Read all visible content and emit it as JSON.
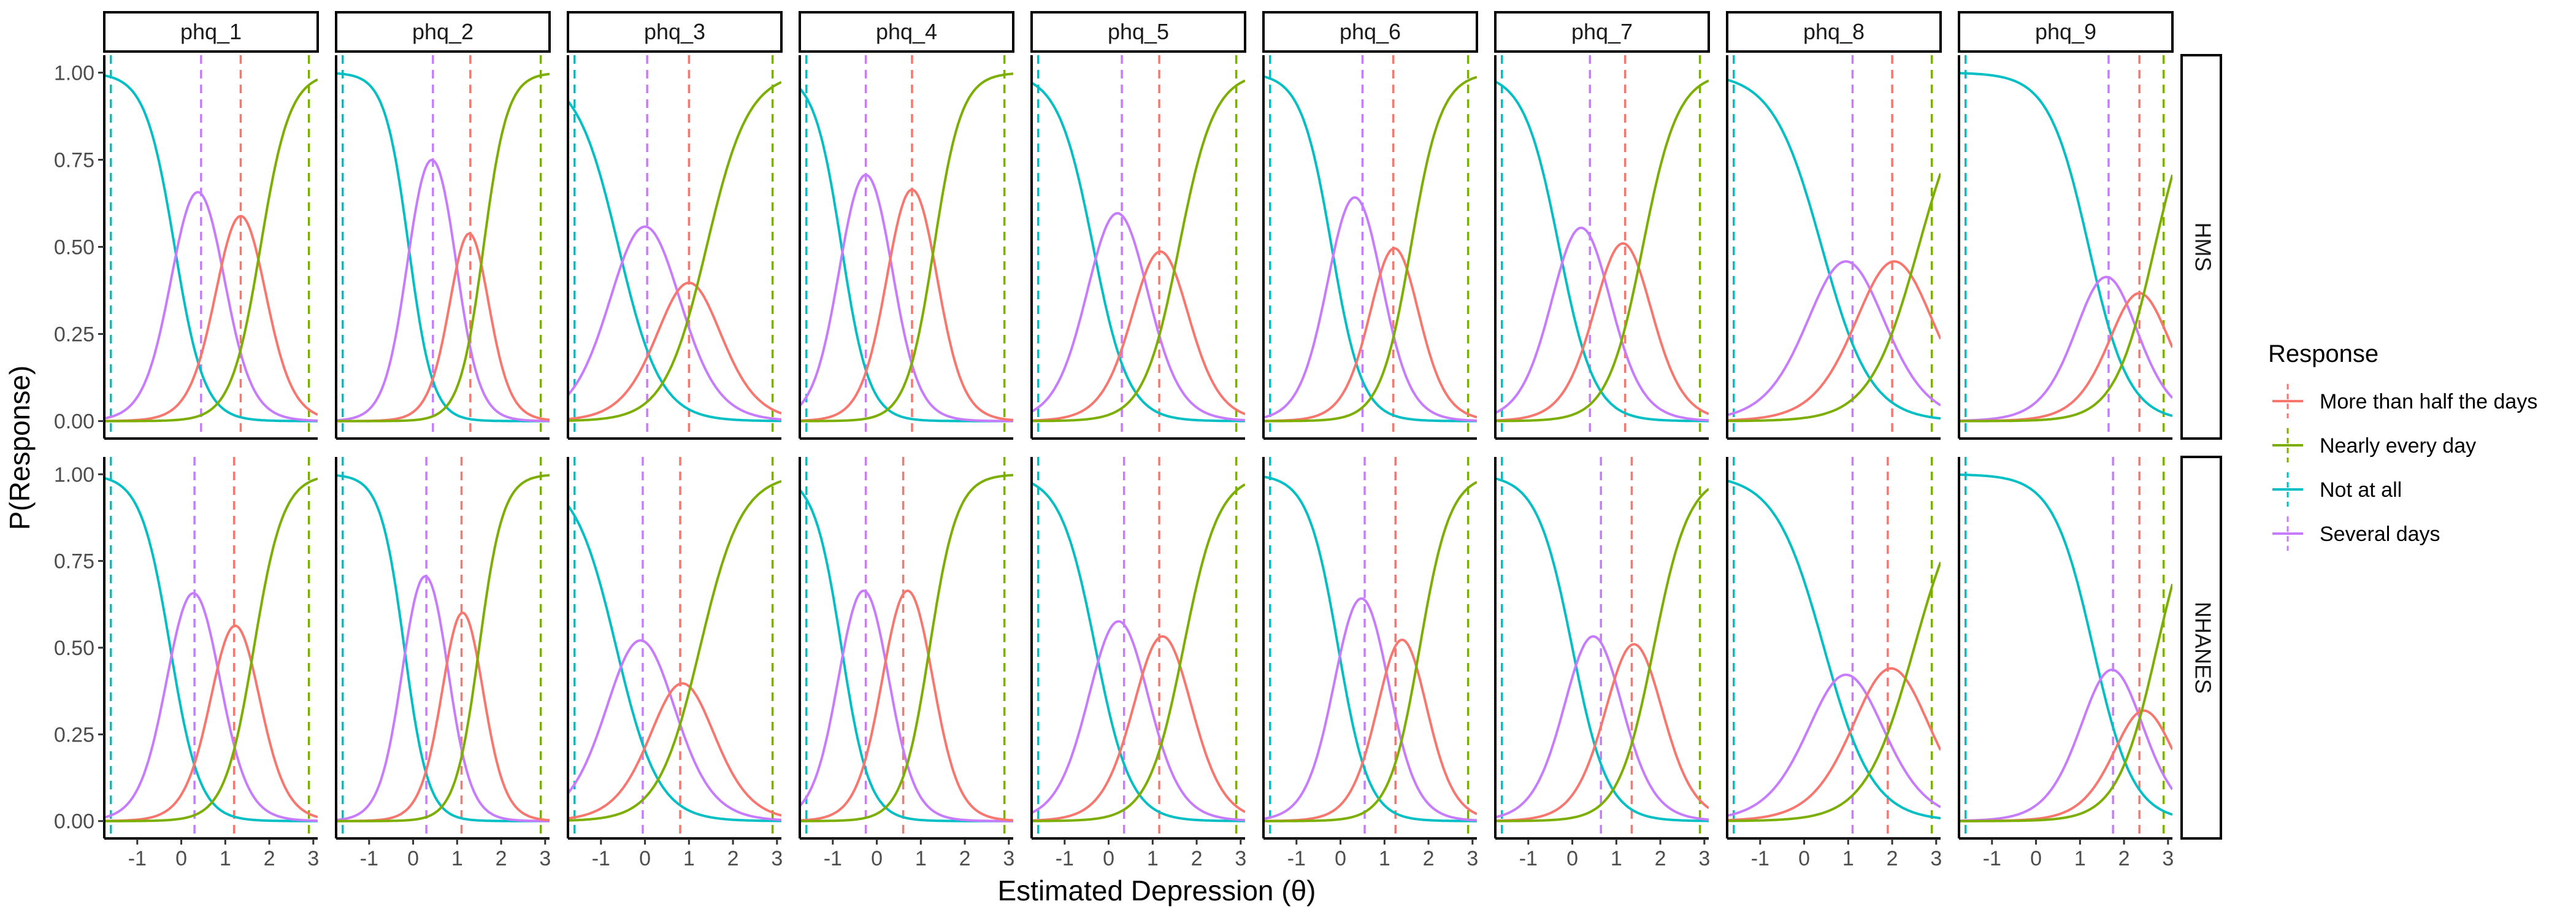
{
  "chart_data": {
    "type": "line",
    "title": "",
    "xlabel": "Estimated Depression (θ)",
    "ylabel": "P(Response)",
    "xlim": [
      -1.75,
      3.1
    ],
    "ylim": [
      -0.05,
      1.05
    ],
    "x_ticks": [
      -1,
      0,
      1,
      2,
      3
    ],
    "y_ticks": [
      0,
      0.25,
      0.5,
      0.75,
      1
    ],
    "y_tick_labels": [
      "0.00",
      "0.25",
      "0.50",
      "0.75",
      "1.00"
    ],
    "grid": false,
    "legend_position": "right",
    "legend": {
      "title": "Response",
      "entries": [
        {
          "label": "More than half the days",
          "color": "#F8766D"
        },
        {
          "label": "Nearly every day",
          "color": "#7CAE00"
        },
        {
          "label": "Not at all",
          "color": "#00BFC4"
        },
        {
          "label": "Several days",
          "color": "#C77CFF"
        }
      ]
    },
    "columns": [
      "phq_1",
      "phq_2",
      "phq_3",
      "phq_4",
      "phq_5",
      "phq_6",
      "phq_7",
      "phq_8",
      "phq_9"
    ],
    "rows": [
      "HMS",
      "NHANES"
    ],
    "colors": {
      "not_at_all": "#00BFC4",
      "several_days": "#C77CFF",
      "more_than_half": "#F8766D",
      "nearly_every_day": "#7CAE00"
    },
    "panels": [
      {
        "row": "HMS",
        "item": "phq_1",
        "a": 3.0,
        "thresholds": [
          -0.15,
          0.9,
          1.8
        ],
        "vlines": [
          -1.6,
          0.45,
          1.35,
          2.9
        ],
        "curve_peaks": {
          "several_days": 0.74,
          "more_than_half": 0.48
        }
      },
      {
        "row": "HMS",
        "item": "phq_2",
        "a": 3.7,
        "thresholds": [
          -0.1,
          0.95,
          1.6
        ],
        "vlines": [
          -1.6,
          0.45,
          1.3,
          2.9
        ],
        "curve_peaks": {
          "several_days": 0.82,
          "more_than_half": 0.57
        }
      },
      {
        "row": "HMS",
        "item": "phq_3",
        "a": 2.1,
        "thresholds": [
          -0.6,
          0.6,
          1.4
        ],
        "vlines": [
          -1.6,
          0.05,
          1.0,
          2.9
        ],
        "curve_peaks": {
          "several_days": 0.53,
          "more_than_half": 0.36
        }
      },
      {
        "row": "HMS",
        "item": "phq_4",
        "a": 3.2,
        "thresholds": [
          -0.8,
          0.3,
          1.3
        ],
        "vlines": [
          -1.6,
          -0.25,
          0.8,
          2.9
        ],
        "curve_peaks": {
          "several_days": 0.73,
          "more_than_half": 0.46
        }
      },
      {
        "row": "HMS",
        "item": "phq_5",
        "a": 2.5,
        "thresholds": [
          -0.35,
          0.75,
          1.6
        ],
        "vlines": [
          -1.6,
          0.3,
          1.15,
          2.9
        ],
        "curve_peaks": {
          "several_days": 0.5,
          "more_than_half": 0.39
        }
      },
      {
        "row": "HMS",
        "item": "phq_6",
        "a": 2.9,
        "thresholds": [
          -0.2,
          0.85,
          1.6
        ],
        "vlines": [
          -1.6,
          0.5,
          1.2,
          2.9
        ],
        "curve_peaks": {
          "several_days": 0.58,
          "more_than_half": 0.43
        }
      },
      {
        "row": "HMS",
        "item": "phq_7",
        "a": 2.5,
        "thresholds": [
          -0.3,
          0.7,
          1.6
        ],
        "vlines": [
          -1.6,
          0.4,
          1.2,
          2.9
        ],
        "curve_peaks": {
          "several_days": 0.52,
          "more_than_half": 0.39
        }
      },
      {
        "row": "HMS",
        "item": "phq_8",
        "a": 1.8,
        "thresholds": [
          0.4,
          1.5,
          2.6
        ],
        "vlines": [
          -1.6,
          1.1,
          2.0,
          2.9
        ],
        "curve_peaks": {
          "several_days": 0.4,
          "more_than_half": 0.34
        }
      },
      {
        "row": "HMS",
        "item": "phq_9",
        "a": 2.2,
        "thresholds": [
          1.2,
          2.0,
          2.7
        ],
        "vlines": [
          -1.6,
          1.65,
          2.35,
          2.9
        ],
        "curve_peaks": {
          "several_days": 0.43,
          "more_than_half": 0.31
        }
      },
      {
        "row": "NHANES",
        "item": "phq_1",
        "a": 3.0,
        "thresholds": [
          -0.25,
          0.8,
          1.65
        ],
        "vlines": [
          -1.6,
          0.3,
          1.2,
          2.9
        ],
        "curve_peaks": {
          "several_days": 0.74,
          "more_than_half": 0.48
        }
      },
      {
        "row": "NHANES",
        "item": "phq_2",
        "a": 3.7,
        "thresholds": [
          -0.2,
          0.75,
          1.5
        ],
        "vlines": [
          -1.6,
          0.3,
          1.1,
          2.9
        ],
        "curve_peaks": {
          "several_days": 0.82,
          "more_than_half": 0.57
        }
      },
      {
        "row": "NHANES",
        "item": "phq_3",
        "a": 2.1,
        "thresholds": [
          -0.65,
          0.45,
          1.25
        ],
        "vlines": [
          -1.6,
          -0.05,
          0.8,
          2.9
        ],
        "curve_peaks": {
          "several_days": 0.53,
          "more_than_half": 0.36
        }
      },
      {
        "row": "NHANES",
        "item": "phq_4",
        "a": 3.2,
        "thresholds": [
          -0.8,
          0.2,
          1.2
        ],
        "vlines": [
          -1.6,
          -0.25,
          0.6,
          2.9
        ],
        "curve_peaks": {
          "several_days": 0.73,
          "more_than_half": 0.46
        }
      },
      {
        "row": "NHANES",
        "item": "phq_5",
        "a": 2.5,
        "thresholds": [
          -0.3,
          0.75,
          1.7
        ],
        "vlines": [
          -1.6,
          0.35,
          1.15,
          2.9
        ],
        "curve_peaks": {
          "several_days": 0.5,
          "more_than_half": 0.39
        }
      },
      {
        "row": "NHANES",
        "item": "phq_6",
        "a": 2.9,
        "thresholds": [
          -0.05,
          1.0,
          1.8
        ],
        "vlines": [
          -1.6,
          0.55,
          1.25,
          2.9
        ],
        "curve_peaks": {
          "several_days": 0.58,
          "more_than_half": 0.43
        }
      },
      {
        "row": "NHANES",
        "item": "phq_7",
        "a": 2.5,
        "thresholds": [
          0.0,
          0.95,
          1.85
        ],
        "vlines": [
          -1.6,
          0.65,
          1.35,
          2.9
        ],
        "curve_peaks": {
          "several_days": 0.52,
          "more_than_half": 0.39
        }
      },
      {
        "row": "NHANES",
        "item": "phq_8",
        "a": 1.8,
        "thresholds": [
          0.45,
          1.45,
          2.5
        ],
        "vlines": [
          -1.6,
          1.1,
          1.9,
          2.9
        ],
        "curve_peaks": {
          "several_days": 0.4,
          "more_than_half": 0.34
        }
      },
      {
        "row": "NHANES",
        "item": "phq_9",
        "a": 2.2,
        "thresholds": [
          1.3,
          2.15,
          2.75
        ],
        "vlines": [
          -1.6,
          1.75,
          2.35,
          2.9
        ],
        "curve_peaks": {
          "several_days": 0.43,
          "more_than_half": 0.31
        }
      }
    ]
  }
}
